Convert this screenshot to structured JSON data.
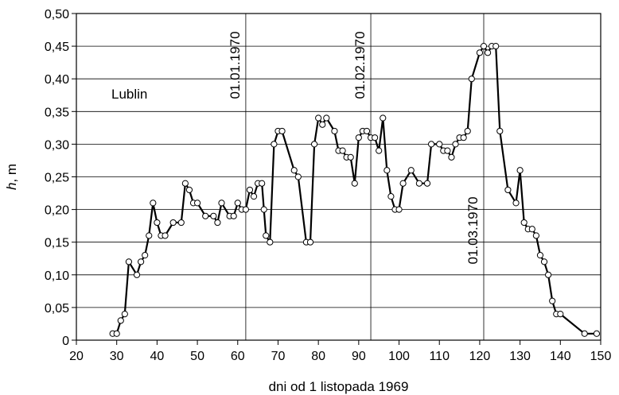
{
  "chart_data": {
    "type": "line",
    "xlabel": "dni od 1 listopada 1969",
    "ylabel_italic": "h",
    "ylabel_rest": ", m",
    "xlim": [
      20,
      150
    ],
    "ylim": [
      0,
      0.5
    ],
    "xticks": [
      "20",
      "30",
      "40",
      "50",
      "60",
      "70",
      "80",
      "90",
      "100",
      "110",
      "120",
      "130",
      "140",
      "150"
    ],
    "yticks": [
      "0",
      "0,05",
      "0,10",
      "0,15",
      "0,20",
      "0,25",
      "0,30",
      "0,35",
      "0,40",
      "0,45",
      "0,50"
    ],
    "grid": "horizontal",
    "annotation": "Lublin",
    "date_markers": [
      {
        "x": 62,
        "label": "01.01.1970",
        "position": "top"
      },
      {
        "x": 93,
        "label": "01.02.1970",
        "position": "top"
      },
      {
        "x": 121,
        "label": "01.03.1970",
        "position": "middle"
      }
    ],
    "series": [
      {
        "marker": "open-circle",
        "color": "#000000",
        "points": [
          [
            29,
            0.01
          ],
          [
            30,
            0.01
          ],
          [
            31,
            0.03
          ],
          [
            32,
            0.04
          ],
          [
            33,
            0.12
          ],
          [
            35,
            0.1
          ],
          [
            36,
            0.12
          ],
          [
            37,
            0.13
          ],
          [
            38,
            0.16
          ],
          [
            39,
            0.21
          ],
          [
            40,
            0.18
          ],
          [
            41,
            0.16
          ],
          [
            42,
            0.16
          ],
          [
            44,
            0.18
          ],
          [
            46,
            0.18
          ],
          [
            47,
            0.24
          ],
          [
            48,
            0.23
          ],
          [
            49,
            0.21
          ],
          [
            50,
            0.21
          ],
          [
            52,
            0.19
          ],
          [
            54,
            0.19
          ],
          [
            55,
            0.18
          ],
          [
            56,
            0.21
          ],
          [
            58,
            0.19
          ],
          [
            59,
            0.19
          ],
          [
            60,
            0.21
          ],
          [
            61,
            0.2
          ],
          [
            62,
            0.2
          ],
          [
            63,
            0.23
          ],
          [
            64,
            0.22
          ],
          [
            65,
            0.24
          ],
          [
            66,
            0.24
          ],
          [
            66.5,
            0.2
          ],
          [
            67,
            0.16
          ],
          [
            68,
            0.15
          ],
          [
            69,
            0.3
          ],
          [
            70,
            0.32
          ],
          [
            71,
            0.32
          ],
          [
            74,
            0.26
          ],
          [
            75,
            0.25
          ],
          [
            77,
            0.15
          ],
          [
            78,
            0.15
          ],
          [
            79,
            0.3
          ],
          [
            80,
            0.34
          ],
          [
            81,
            0.33
          ],
          [
            82,
            0.34
          ],
          [
            84,
            0.32
          ],
          [
            85,
            0.29
          ],
          [
            86,
            0.29
          ],
          [
            87,
            0.28
          ],
          [
            88,
            0.28
          ],
          [
            89,
            0.24
          ],
          [
            90,
            0.31
          ],
          [
            91,
            0.32
          ],
          [
            92,
            0.32
          ],
          [
            93,
            0.31
          ],
          [
            94,
            0.31
          ],
          [
            95,
            0.29
          ],
          [
            96,
            0.34
          ],
          [
            97,
            0.26
          ],
          [
            98,
            0.22
          ],
          [
            99,
            0.2
          ],
          [
            100,
            0.2
          ],
          [
            101,
            0.24
          ],
          [
            103,
            0.26
          ],
          [
            105,
            0.24
          ],
          [
            107,
            0.24
          ],
          [
            108,
            0.3
          ],
          [
            110,
            0.3
          ],
          [
            111,
            0.29
          ],
          [
            112,
            0.29
          ],
          [
            113,
            0.28
          ],
          [
            114,
            0.3
          ],
          [
            115,
            0.31
          ],
          [
            116,
            0.31
          ],
          [
            117,
            0.32
          ],
          [
            118,
            0.4
          ],
          [
            120,
            0.44
          ],
          [
            121,
            0.45
          ],
          [
            122,
            0.44
          ],
          [
            123,
            0.45
          ],
          [
            124,
            0.45
          ],
          [
            125,
            0.32
          ],
          [
            127,
            0.23
          ],
          [
            129,
            0.21
          ],
          [
            130,
            0.26
          ],
          [
            131,
            0.18
          ],
          [
            132,
            0.17
          ],
          [
            133,
            0.17
          ],
          [
            134,
            0.16
          ],
          [
            135,
            0.13
          ],
          [
            136,
            0.12
          ],
          [
            137,
            0.1
          ],
          [
            138,
            0.06
          ],
          [
            139,
            0.04
          ],
          [
            140,
            0.04
          ],
          [
            146,
            0.01
          ],
          [
            149,
            0.01
          ]
        ]
      }
    ]
  }
}
